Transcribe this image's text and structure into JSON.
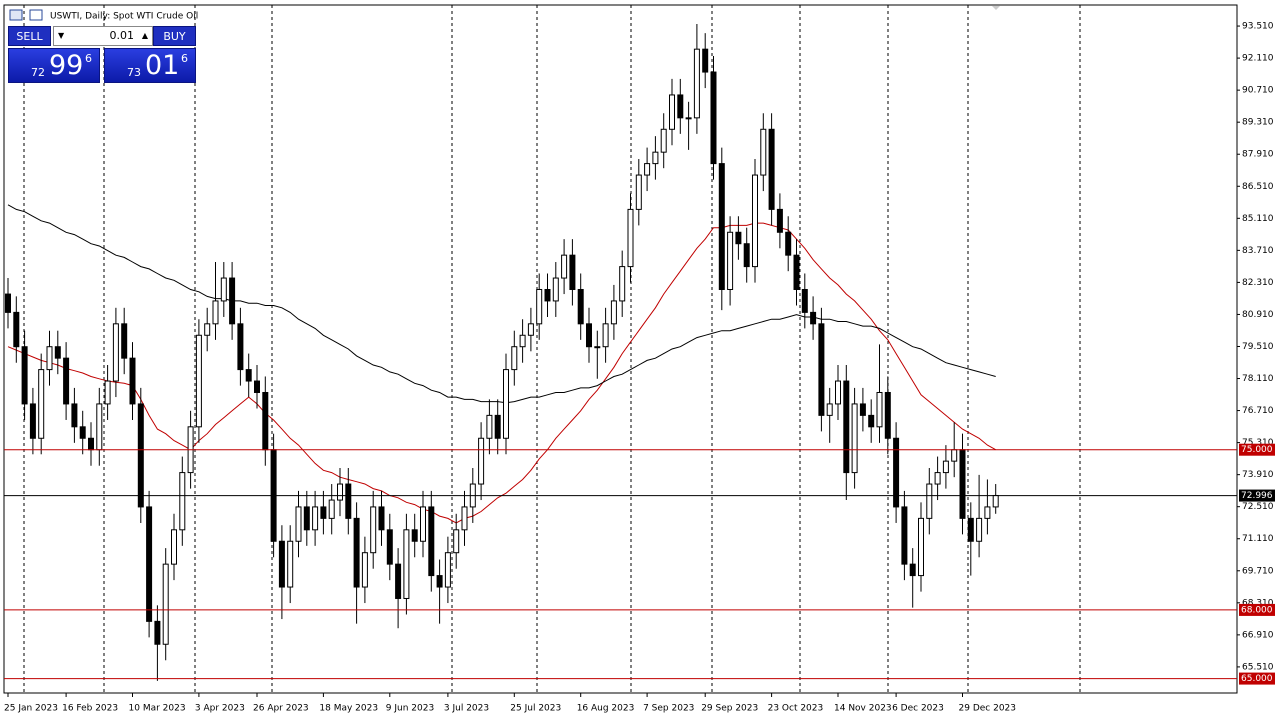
{
  "chart_data": {
    "type": "candlestick",
    "title": "USWTI, Daily:  Spot WTI Crude Oil",
    "up_color": "#ffffff",
    "down_color": "#000000",
    "grid": false,
    "ylim": [
      64.37,
      94.43
    ],
    "yticks": [
      {
        "value": 93.51,
        "label": "93.510"
      },
      {
        "value": 92.11,
        "label": "92.110"
      },
      {
        "value": 90.71,
        "label": "90.710"
      },
      {
        "value": 89.31,
        "label": "89.310"
      },
      {
        "value": 87.91,
        "label": "87.910"
      },
      {
        "value": 86.51,
        "label": "86.510"
      },
      {
        "value": 85.11,
        "label": "85.110"
      },
      {
        "value": 83.71,
        "label": "83.710"
      },
      {
        "value": 82.31,
        "label": "82.310"
      },
      {
        "value": 80.91,
        "label": "80.910"
      },
      {
        "value": 79.51,
        "label": "79.510"
      },
      {
        "value": 78.11,
        "label": "78.110"
      },
      {
        "value": 76.71,
        "label": "76.710"
      },
      {
        "value": 75.31,
        "label": "75.310"
      },
      {
        "value": 73.91,
        "label": "73.910"
      },
      {
        "value": 72.51,
        "label": "72.510"
      },
      {
        "value": 71.11,
        "label": "71.110"
      },
      {
        "value": 69.71,
        "label": "69.710"
      },
      {
        "value": 68.31,
        "label": "68.310"
      },
      {
        "value": 66.91,
        "label": "66.910"
      },
      {
        "value": 65.51,
        "label": "65.510"
      }
    ],
    "levels": [
      {
        "value": 75,
        "label": "75.000",
        "color": "#c00000"
      },
      {
        "value": 72.996,
        "label": "72.996",
        "color": "#000000"
      },
      {
        "value": 68,
        "label": "68.000",
        "color": "#c00000"
      },
      {
        "value": 65,
        "label": "65.000",
        "color": "#c00000"
      }
    ],
    "categories": [
      "25 Jan 2023",
      null,
      null,
      null,
      null,
      null,
      null,
      "16 Feb 2023",
      null,
      null,
      null,
      null,
      null,
      null,
      null,
      "10 Mar 2023",
      null,
      null,
      null,
      null,
      null,
      null,
      null,
      "3 Apr 2023",
      null,
      null,
      null,
      null,
      null,
      null,
      "26 Apr 2023",
      null,
      null,
      null,
      null,
      null,
      null,
      null,
      "18 May 2023",
      null,
      null,
      null,
      null,
      null,
      null,
      null,
      "9 Jun 2023",
      null,
      null,
      null,
      null,
      null,
      null,
      "3 Jul 2023",
      null,
      null,
      null,
      null,
      null,
      null,
      null,
      "25 Jul 2023",
      null,
      null,
      null,
      null,
      null,
      null,
      null,
      "16 Aug 2023",
      null,
      null,
      null,
      null,
      null,
      null,
      null,
      "7 Sep 2023",
      null,
      null,
      null,
      null,
      null,
      null,
      "29 Sep 2023",
      null,
      null,
      null,
      null,
      null,
      null,
      null,
      "23 Oct 2023",
      null,
      null,
      null,
      null,
      null,
      null,
      null,
      "14 Nov 2023",
      null,
      null,
      null,
      null,
      null,
      null,
      "6 Dec 2023",
      null,
      null,
      null,
      null,
      null,
      null,
      null,
      "29 Dec 2023",
      null,
      null,
      null,
      null
    ],
    "candles": [
      [
        81.8,
        82.5,
        80.3,
        81.0
      ],
      [
        81.0,
        81.7,
        78.8,
        79.5
      ],
      [
        79.5,
        80.2,
        76.3,
        77.0
      ],
      [
        77.0,
        77.7,
        74.8,
        75.5
      ],
      [
        75.5,
        79.2,
        74.8,
        78.5
      ],
      [
        78.5,
        80.2,
        77.8,
        79.5
      ],
      [
        79.5,
        80.2,
        78.3,
        79.0
      ],
      [
        79.0,
        79.7,
        76.3,
        77.0
      ],
      [
        77.0,
        77.7,
        75.3,
        76.0
      ],
      [
        76.0,
        76.7,
        74.8,
        75.5
      ],
      [
        75.5,
        76.2,
        74.3,
        75.0
      ],
      [
        75.0,
        77.7,
        74.3,
        77.0
      ],
      [
        77.0,
        78.7,
        76.3,
        78.0
      ],
      [
        78.0,
        81.2,
        77.3,
        80.5
      ],
      [
        80.5,
        81.2,
        78.3,
        79.0
      ],
      [
        79.0,
        79.7,
        76.3,
        77.0
      ],
      [
        77.0,
        77.7,
        71.8,
        72.5
      ],
      [
        72.5,
        73.2,
        66.8,
        67.5
      ],
      [
        67.5,
        68.2,
        64.9,
        66.5
      ],
      [
        66.5,
        70.7,
        65.8,
        70.0
      ],
      [
        70.0,
        72.2,
        69.3,
        71.5
      ],
      [
        71.5,
        74.7,
        70.8,
        74.0
      ],
      [
        74.0,
        76.7,
        73.3,
        76.0
      ],
      [
        76.0,
        80.7,
        75.3,
        80.0
      ],
      [
        80.0,
        81.2,
        79.3,
        80.5
      ],
      [
        80.5,
        83.2,
        79.8,
        81.5
      ],
      [
        81.5,
        83.2,
        80.8,
        82.5
      ],
      [
        82.5,
        83.2,
        79.8,
        80.5
      ],
      [
        80.5,
        81.2,
        77.8,
        78.5
      ],
      [
        78.5,
        79.2,
        77.3,
        78.0
      ],
      [
        78.0,
        78.7,
        76.8,
        77.5
      ],
      [
        77.5,
        78.2,
        74.3,
        75.0
      ],
      [
        75.0,
        75.7,
        70.3,
        71.0
      ],
      [
        71.0,
        71.7,
        67.6,
        69.0
      ],
      [
        69.0,
        71.7,
        68.3,
        71.0
      ],
      [
        71.0,
        73.2,
        70.3,
        72.5
      ],
      [
        72.5,
        73.2,
        70.8,
        71.5
      ],
      [
        71.5,
        73.2,
        70.8,
        72.5
      ],
      [
        72.5,
        73.2,
        71.3,
        72.0
      ],
      [
        72.0,
        73.5,
        71.3,
        72.8
      ],
      [
        72.8,
        74.2,
        72.1,
        73.5
      ],
      [
        73.5,
        74.2,
        71.3,
        72.0
      ],
      [
        72.0,
        72.7,
        67.4,
        69.0
      ],
      [
        69.0,
        71.2,
        68.3,
        70.5
      ],
      [
        70.5,
        73.2,
        69.8,
        72.5
      ],
      [
        72.5,
        73.2,
        70.8,
        71.5
      ],
      [
        71.5,
        72.2,
        69.3,
        70.0
      ],
      [
        70.0,
        70.7,
        67.2,
        68.5
      ],
      [
        68.5,
        72.2,
        67.8,
        71.5
      ],
      [
        71.5,
        72.2,
        70.3,
        71.0
      ],
      [
        71.0,
        73.2,
        70.3,
        72.5
      ],
      [
        72.5,
        73.2,
        68.8,
        69.5
      ],
      [
        69.5,
        70.2,
        67.4,
        69.0
      ],
      [
        69.0,
        71.2,
        68.3,
        70.5
      ],
      [
        70.5,
        72.2,
        69.8,
        71.5
      ],
      [
        71.5,
        73.2,
        70.8,
        72.5
      ],
      [
        72.5,
        74.2,
        71.8,
        73.5
      ],
      [
        73.5,
        76.2,
        72.8,
        75.5
      ],
      [
        75.5,
        77.2,
        74.8,
        76.5
      ],
      [
        76.5,
        77.2,
        74.8,
        75.5
      ],
      [
        75.5,
        79.2,
        74.8,
        78.5
      ],
      [
        78.5,
        80.2,
        77.8,
        79.5
      ],
      [
        79.5,
        80.7,
        78.8,
        80.0
      ],
      [
        80.0,
        81.2,
        79.3,
        80.5
      ],
      [
        80.5,
        82.7,
        79.8,
        82.0
      ],
      [
        82.0,
        82.7,
        80.8,
        81.5
      ],
      [
        81.5,
        83.2,
        80.8,
        82.5
      ],
      [
        82.5,
        84.2,
        81.8,
        83.5
      ],
      [
        83.5,
        84.2,
        81.3,
        82.0
      ],
      [
        82.0,
        82.7,
        79.8,
        80.5
      ],
      [
        80.5,
        81.2,
        78.8,
        79.5
      ],
      [
        79.5,
        80.2,
        78.1,
        79.5
      ],
      [
        79.5,
        81.2,
        78.8,
        80.5
      ],
      [
        80.5,
        82.2,
        79.8,
        81.5
      ],
      [
        81.5,
        83.7,
        80.8,
        83.0
      ],
      [
        83.0,
        86.2,
        82.3,
        85.5
      ],
      [
        85.5,
        87.7,
        84.8,
        87.0
      ],
      [
        87.0,
        88.2,
        86.3,
        87.5
      ],
      [
        87.5,
        88.7,
        86.8,
        88.0
      ],
      [
        88.0,
        89.7,
        87.3,
        89.0
      ],
      [
        89.0,
        91.2,
        88.3,
        90.5
      ],
      [
        90.5,
        91.2,
        88.8,
        89.5
      ],
      [
        89.5,
        90.2,
        88.1,
        89.5
      ],
      [
        89.5,
        93.6,
        88.8,
        92.5
      ],
      [
        92.5,
        93.2,
        90.8,
        91.5
      ],
      [
        91.5,
        92.2,
        86.8,
        87.5
      ],
      [
        87.5,
        88.2,
        81.1,
        82.0
      ],
      [
        82.0,
        85.2,
        81.3,
        84.5
      ],
      [
        84.5,
        85.2,
        83.3,
        84.0
      ],
      [
        84.0,
        84.7,
        82.3,
        83.0
      ],
      [
        83.0,
        87.7,
        82.3,
        87.0
      ],
      [
        87.0,
        89.7,
        86.3,
        89.0
      ],
      [
        89.0,
        89.7,
        84.8,
        85.5
      ],
      [
        85.5,
        86.2,
        83.8,
        84.5
      ],
      [
        84.5,
        85.2,
        82.8,
        83.5
      ],
      [
        83.5,
        84.2,
        81.3,
        82.0
      ],
      [
        82.0,
        82.7,
        80.3,
        81.0
      ],
      [
        81.0,
        81.7,
        79.8,
        80.5
      ],
      [
        80.5,
        81.2,
        75.8,
        76.5
      ],
      [
        76.5,
        77.7,
        75.3,
        77.0
      ],
      [
        77.0,
        78.7,
        76.3,
        78.0
      ],
      [
        78.0,
        78.7,
        72.8,
        74.0
      ],
      [
        74.0,
        77.7,
        73.3,
        77.0
      ],
      [
        77.0,
        77.7,
        75.8,
        76.5
      ],
      [
        76.5,
        77.2,
        75.3,
        76.0
      ],
      [
        76.0,
        79.6,
        75.3,
        77.5
      ],
      [
        77.5,
        78.2,
        74.8,
        75.5
      ],
      [
        75.5,
        76.2,
        71.8,
        72.5
      ],
      [
        72.5,
        73.2,
        69.3,
        70.0
      ],
      [
        70.0,
        70.7,
        68.1,
        69.5
      ],
      [
        69.5,
        72.7,
        68.8,
        72.0
      ],
      [
        72.0,
        74.2,
        71.3,
        73.5
      ],
      [
        73.5,
        74.7,
        72.8,
        74.0
      ],
      [
        74.0,
        75.2,
        73.3,
        74.5
      ],
      [
        74.5,
        76.2,
        73.8,
        75.0
      ],
      [
        75.0,
        75.7,
        71.3,
        72.0
      ],
      [
        72.0,
        72.7,
        69.5,
        71.0
      ],
      [
        71.0,
        73.9,
        70.3,
        72.0
      ],
      [
        72.0,
        73.7,
        71.3,
        72.5
      ],
      [
        72.5,
        73.5,
        72.2,
        73.0
      ]
    ],
    "series": [
      {
        "color": "#c00000",
        "values": [
          79.5,
          79.35,
          79.2,
          79.05,
          78.9,
          78.8,
          78.7,
          78.55,
          78.45,
          78.35,
          78.2,
          78.1,
          78.0,
          77.95,
          77.9,
          77.8,
          77.2,
          76.5,
          75.9,
          75.7,
          75.4,
          75.2,
          75.0,
          75.4,
          75.7,
          76.1,
          76.4,
          76.7,
          77.0,
          77.3,
          77.0,
          76.6,
          76.3,
          75.9,
          75.5,
          75.2,
          74.8,
          74.4,
          74.1,
          74.0,
          73.8,
          73.7,
          73.6,
          73.5,
          73.3,
          73.2,
          73.0,
          72.9,
          72.7,
          72.6,
          72.4,
          72.3,
          72.1,
          72.0,
          71.8,
          72.0,
          72.1,
          72.3,
          72.6,
          72.9,
          73.1,
          73.4,
          73.7,
          74.1,
          74.6,
          75.0,
          75.5,
          75.9,
          76.3,
          76.7,
          77.2,
          77.6,
          78.1,
          78.6,
          79.2,
          79.7,
          80.2,
          80.7,
          81.2,
          81.8,
          82.3,
          82.8,
          83.3,
          83.8,
          84.2,
          84.7,
          84.7,
          84.8,
          84.8,
          84.8,
          84.9,
          84.9,
          84.8,
          84.7,
          84.6,
          84.2,
          83.8,
          83.3,
          82.9,
          82.5,
          82.2,
          81.8,
          81.5,
          81.1,
          80.7,
          80.2,
          79.8,
          79.2,
          78.6,
          78.0,
          77.4,
          77.1,
          76.8,
          76.5,
          76.2,
          75.9,
          75.7,
          75.5,
          75.2,
          75.0
        ]
      },
      {
        "color": "#000000",
        "values": [
          85.7,
          85.5,
          85.4,
          85.2,
          85.0,
          84.9,
          84.7,
          84.5,
          84.4,
          84.2,
          84.0,
          83.9,
          83.7,
          83.5,
          83.4,
          83.2,
          83.0,
          82.9,
          82.7,
          82.5,
          82.4,
          82.2,
          82.0,
          81.9,
          81.7,
          81.6,
          81.6,
          81.5,
          81.5,
          81.4,
          81.4,
          81.3,
          81.3,
          81.2,
          81.0,
          80.7,
          80.5,
          80.3,
          80.0,
          79.8,
          79.6,
          79.4,
          79.1,
          78.9,
          78.7,
          78.6,
          78.4,
          78.3,
          78.1,
          77.9,
          77.8,
          77.6,
          77.5,
          77.3,
          77.3,
          77.2,
          77.2,
          77.1,
          77.1,
          77.1,
          77.05,
          77.1,
          77.2,
          77.3,
          77.3,
          77.4,
          77.5,
          77.5,
          77.6,
          77.7,
          77.7,
          77.8,
          78.0,
          78.2,
          78.3,
          78.5,
          78.7,
          78.9,
          79.0,
          79.2,
          79.4,
          79.5,
          79.7,
          79.9,
          80.0,
          80.1,
          80.2,
          80.2,
          80.3,
          80.4,
          80.5,
          80.6,
          80.7,
          80.7,
          80.8,
          80.9,
          80.8,
          80.8,
          80.7,
          80.7,
          80.6,
          80.6,
          80.5,
          80.4,
          80.4,
          80.3,
          80.1,
          79.9,
          79.7,
          79.5,
          79.4,
          79.2,
          79.0,
          78.8,
          78.7,
          78.6,
          78.5,
          78.4,
          78.3,
          78.2
        ]
      }
    ]
  },
  "trade_panel": {
    "sell": "SELL",
    "buy": "BUY",
    "lot": "0.01",
    "bid": {
      "big": "72",
      "main": "99",
      "small": "6"
    },
    "ask": {
      "big": "73",
      "main": "01",
      "small": "6"
    }
  }
}
